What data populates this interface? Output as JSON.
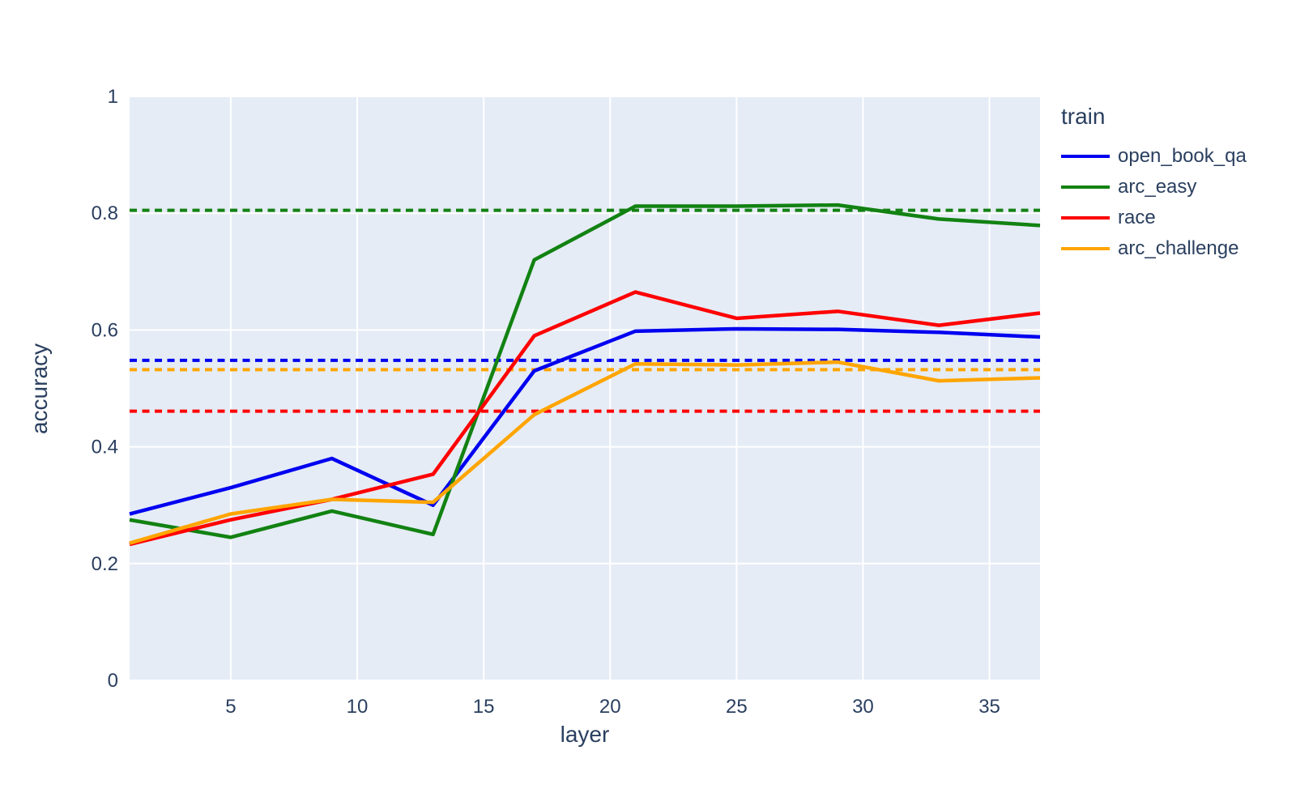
{
  "figure": {
    "background": "#ffffff",
    "plot_background": "#e5ecf6",
    "grid_color": "#ffffff",
    "text_color": "#2a3f5f"
  },
  "chart_data": {
    "type": "line",
    "title": "",
    "xlabel": "layer",
    "ylabel": "accuracy",
    "legend_title": "train",
    "legend_position": "right",
    "grid": true,
    "xlim": [
      1,
      37
    ],
    "ylim": [
      0,
      1
    ],
    "x_ticks": [
      5,
      10,
      15,
      20,
      25,
      30,
      35
    ],
    "y_ticks": [
      0,
      0.2,
      0.4,
      0.6,
      0.8,
      1
    ],
    "y_tick_labels": [
      "0",
      "0.2",
      "0.4",
      "0.6",
      "0.8",
      "1"
    ],
    "x": [
      1,
      5,
      9,
      13,
      17,
      21,
      25,
      29,
      33,
      37
    ],
    "series": [
      {
        "name": "open_book_qa",
        "color": "#0000f0",
        "values": [
          0.285,
          0.33,
          0.38,
          0.3,
          0.53,
          0.598,
          0.602,
          0.601,
          0.596,
          0.588
        ],
        "baseline": 0.548,
        "baseline_style": "dotted"
      },
      {
        "name": "arc_easy",
        "color": "#128212",
        "values": [
          0.275,
          0.245,
          0.29,
          0.25,
          0.72,
          0.812,
          0.812,
          0.814,
          0.79,
          0.779
        ],
        "baseline": 0.805,
        "baseline_style": "dotted"
      },
      {
        "name": "race",
        "color": "#ff0000",
        "values": [
          0.233,
          0.275,
          0.31,
          0.353,
          0.59,
          0.665,
          0.62,
          0.632,
          0.608,
          0.629
        ],
        "baseline": 0.461,
        "baseline_style": "dotted"
      },
      {
        "name": "arc_challenge",
        "color": "#ffa500",
        "values": [
          0.235,
          0.285,
          0.31,
          0.305,
          0.455,
          0.542,
          0.54,
          0.545,
          0.513,
          0.518
        ],
        "baseline": 0.532,
        "baseline_style": "dotted"
      }
    ]
  }
}
